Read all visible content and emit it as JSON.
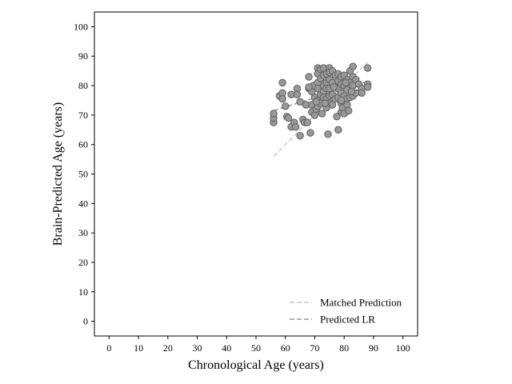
{
  "chart_data": {
    "type": "scatter",
    "title": "",
    "xlabel": "Chronological Age (years)",
    "ylabel": "Brain-Predicted Age (years)",
    "xlim": [
      -5,
      105
    ],
    "ylim": [
      -5,
      105
    ],
    "xticks": [
      0,
      10,
      20,
      30,
      40,
      50,
      60,
      70,
      80,
      90,
      100
    ],
    "yticks": [
      0,
      10,
      20,
      30,
      40,
      50,
      60,
      70,
      80,
      90,
      100
    ],
    "grid": false,
    "legend": {
      "placement": "bottom-right",
      "entries": [
        "Matched Prediction",
        "Predicted LR"
      ]
    },
    "colors": {
      "marker_fill": "#999999",
      "marker_edge": "#666666",
      "matched_line": "#cccccc",
      "lr_line": "#999999"
    },
    "series": [
      {
        "name": "",
        "kind": "scatter",
        "points": [
          [
            56,
            67.5
          ],
          [
            56,
            69
          ],
          [
            56,
            70.5
          ],
          [
            58,
            76.5
          ],
          [
            59,
            77.5
          ],
          [
            59,
            75.5
          ],
          [
            59,
            81
          ],
          [
            60,
            73
          ],
          [
            60.5,
            69.5
          ],
          [
            61,
            69
          ],
          [
            62,
            66
          ],
          [
            62,
            77
          ],
          [
            63,
            67.5
          ],
          [
            63.5,
            66
          ],
          [
            64,
            79
          ],
          [
            64,
            77
          ],
          [
            65,
            63
          ],
          [
            65,
            74.5
          ],
          [
            66,
            68.5
          ],
          [
            66.5,
            67.5
          ],
          [
            67,
            73.5
          ],
          [
            67.5,
            67.5
          ],
          [
            68,
            83
          ],
          [
            68,
            79
          ],
          [
            68.5,
            64
          ],
          [
            69,
            71
          ],
          [
            69,
            73.5
          ],
          [
            69,
            78
          ],
          [
            69.5,
            80
          ],
          [
            70,
            76
          ],
          [
            70,
            70
          ],
          [
            70.5,
            72
          ],
          [
            71,
            86
          ],
          [
            71,
            84
          ],
          [
            71,
            81
          ],
          [
            71,
            79
          ],
          [
            71,
            75
          ],
          [
            71,
            73
          ],
          [
            72,
            85.5
          ],
          [
            72,
            82.5
          ],
          [
            72,
            77
          ],
          [
            72,
            74
          ],
          [
            72.5,
            70.5
          ],
          [
            73,
            86
          ],
          [
            73,
            83.5
          ],
          [
            73,
            80
          ],
          [
            73,
            78
          ],
          [
            73,
            76
          ],
          [
            74,
            84
          ],
          [
            74,
            81
          ],
          [
            74,
            79
          ],
          [
            74,
            75.5
          ],
          [
            74,
            72.5
          ],
          [
            74.5,
            63.5
          ],
          [
            75,
            86
          ],
          [
            75,
            84.5
          ],
          [
            75,
            82
          ],
          [
            75,
            79
          ],
          [
            75,
            76.5
          ],
          [
            75,
            74
          ],
          [
            76,
            85
          ],
          [
            76,
            81
          ],
          [
            76,
            77
          ],
          [
            76,
            73.5
          ],
          [
            77,
            83.5
          ],
          [
            77,
            79.5
          ],
          [
            77,
            75.5
          ],
          [
            77.5,
            69.5
          ],
          [
            78,
            84
          ],
          [
            78,
            81.5
          ],
          [
            78,
            79
          ],
          [
            78,
            76
          ],
          [
            78,
            65
          ],
          [
            79,
            83
          ],
          [
            79,
            80.5
          ],
          [
            79,
            77.5
          ],
          [
            79,
            74
          ],
          [
            79,
            71
          ],
          [
            79.5,
            72.5
          ],
          [
            80,
            83.5
          ],
          [
            80,
            80
          ],
          [
            80,
            76.5
          ],
          [
            80,
            70.5
          ],
          [
            81,
            82
          ],
          [
            81,
            78.5
          ],
          [
            81,
            75.5
          ],
          [
            81,
            73.5
          ],
          [
            81.5,
            71.5
          ],
          [
            82,
            85
          ],
          [
            82,
            81
          ],
          [
            82,
            76
          ],
          [
            83,
            86.5
          ],
          [
            83,
            83
          ],
          [
            83,
            80
          ],
          [
            83,
            76.5
          ],
          [
            84,
            82
          ],
          [
            84,
            77.5
          ],
          [
            85,
            80.5
          ],
          [
            86,
            79
          ],
          [
            86,
            77.5
          ],
          [
            88,
            86
          ],
          [
            88,
            80.5
          ],
          [
            88,
            79.5
          ],
          [
            68,
            79.5
          ],
          [
            70.5,
            74.5
          ],
          [
            73.5,
            74
          ],
          [
            76.5,
            79.5
          ],
          [
            79,
            75
          ],
          [
            80.5,
            81
          ],
          [
            82.5,
            78
          ]
        ]
      },
      {
        "name": "Matched Prediction",
        "kind": "line",
        "points": [
          [
            56,
            56
          ],
          [
            88,
            88
          ]
        ]
      },
      {
        "name": "Predicted LR",
        "kind": "line",
        "points": [
          [
            56,
            71.5
          ],
          [
            88,
            81.5
          ]
        ]
      }
    ]
  }
}
